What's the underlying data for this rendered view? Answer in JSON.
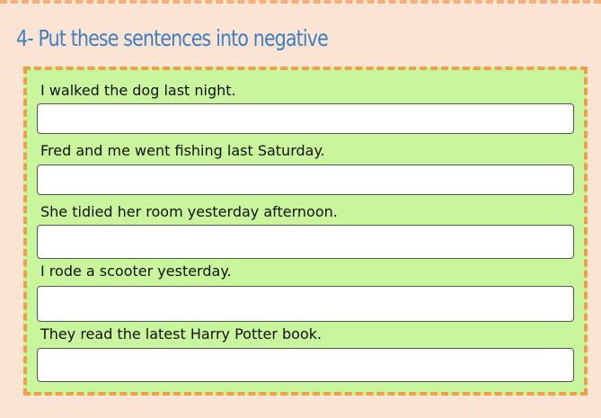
{
  "title": "4- Put these sentences into negative",
  "colors": {
    "background": "#fce4d4",
    "panel": "#c9f59c",
    "dashes": "#f0a04c",
    "title": "#3d7fc1"
  },
  "items": [
    {
      "sentence": "I walked the dog last night.",
      "answer": ""
    },
    {
      "sentence": "Fred and me went fishing last Saturday.",
      "answer": ""
    },
    {
      "sentence": "She tidied her room yesterday afternoon.",
      "answer": ""
    },
    {
      "sentence": "I rode a scooter yesterday.",
      "answer": ""
    },
    {
      "sentence": "They read the latest Harry Potter book.",
      "answer": ""
    }
  ]
}
